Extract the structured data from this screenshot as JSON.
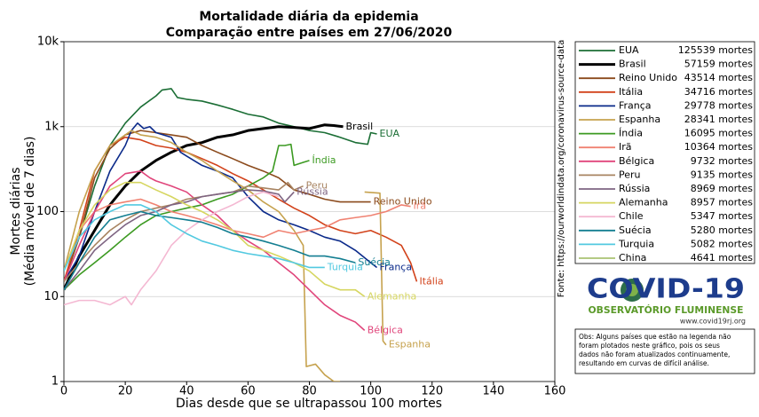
{
  "chart_data": {
    "type": "line",
    "title": "Mortalidade diária da epidemia",
    "subtitle": "Comparação entre países em 27/06/2020",
    "x_label": "Dias desde que se ultrapassou 100 mortes",
    "y_label": [
      "Mortes diárias",
      "(Média móvel de 7 dias)"
    ],
    "source": "Fonte: https://ourworldindata.org/coronavirus-source-data",
    "xlim": [
      0,
      160
    ],
    "xticks": [
      0,
      20,
      40,
      60,
      80,
      100,
      120,
      140,
      160
    ],
    "ylim": [
      1,
      10000
    ],
    "log_scale": true,
    "yticks": [
      1,
      10,
      100,
      {
        "value": 1000,
        "label": "1k"
      },
      {
        "value": 10000,
        "label": "10k"
      }
    ],
    "grid": true,
    "legend_position": "right",
    "series": [
      {
        "name": "EUA",
        "color": "#1b6e35",
        "total_label": "125539 mortes",
        "x": [
          0,
          5,
          10,
          15,
          20,
          25,
          30,
          32,
          35,
          37,
          40,
          45,
          50,
          55,
          60,
          65,
          70,
          75,
          80,
          85,
          90,
          95,
          99,
          100,
          102
        ],
        "values": [
          15,
          50,
          200,
          600,
          1100,
          1700,
          2300,
          2700,
          2800,
          2200,
          2100,
          2000,
          1800,
          1600,
          1400,
          1300,
          1100,
          1000,
          900,
          850,
          750,
          650,
          620,
          850,
          820
        ]
      },
      {
        "name": "Brasil",
        "color": "#000000",
        "linewidth": 3,
        "total_label": "57159 mortes",
        "x": [
          0,
          5,
          10,
          15,
          20,
          25,
          30,
          35,
          40,
          45,
          50,
          55,
          60,
          65,
          70,
          75,
          80,
          85,
          88,
          91
        ],
        "values": [
          12,
          30,
          60,
          120,
          200,
          300,
          400,
          500,
          600,
          650,
          750,
          800,
          900,
          950,
          1000,
          980,
          950,
          1050,
          1030,
          1000
        ]
      },
      {
        "name": "Reino Unido",
        "color": "#8b4a1c",
        "total_label": "43514 mortes",
        "x": [
          0,
          5,
          10,
          15,
          20,
          25,
          30,
          35,
          40,
          45,
          50,
          55,
          60,
          65,
          70,
          75,
          80,
          85,
          90,
          95,
          100
        ],
        "values": [
          15,
          50,
          250,
          550,
          800,
          900,
          850,
          800,
          750,
          600,
          500,
          420,
          350,
          300,
          250,
          180,
          160,
          140,
          130,
          130,
          130
        ]
      },
      {
        "name": "Itália",
        "color": "#d2421a",
        "total_label": "34716 mortes",
        "x": [
          0,
          5,
          10,
          15,
          20,
          25,
          30,
          35,
          40,
          45,
          50,
          55,
          60,
          65,
          70,
          75,
          80,
          85,
          90,
          95,
          100,
          105,
          110,
          113,
          115
        ],
        "values": [
          15,
          60,
          300,
          600,
          750,
          700,
          600,
          560,
          500,
          420,
          350,
          280,
          230,
          180,
          140,
          110,
          90,
          70,
          60,
          55,
          60,
          50,
          40,
          25,
          15
        ]
      },
      {
        "name": "França",
        "color": "#0b2a8a",
        "total_label": "29778 mortes",
        "x": [
          0,
          5,
          10,
          15,
          20,
          22,
          24,
          26,
          28,
          30,
          35,
          38,
          40,
          45,
          50,
          55,
          60,
          65,
          70,
          75,
          80,
          85,
          90,
          95,
          100,
          102
        ],
        "values": [
          15,
          30,
          100,
          300,
          600,
          900,
          1100,
          950,
          1000,
          850,
          750,
          500,
          450,
          350,
          300,
          250,
          150,
          100,
          80,
          70,
          60,
          50,
          45,
          35,
          25,
          22
        ]
      },
      {
        "name": "Espanha",
        "color": "#c6a24e",
        "total_label": "28341 mortes",
        "x": [
          0,
          5,
          10,
          15,
          20,
          22,
          25,
          30,
          35,
          40,
          45,
          50,
          55,
          60,
          65,
          70,
          75,
          78,
          79,
          82,
          85,
          88,
          90,
          95,
          98,
          103,
          104,
          105
        ],
        "values": [
          20,
          100,
          300,
          600,
          800,
          900,
          800,
          750,
          650,
          500,
          400,
          300,
          230,
          180,
          130,
          100,
          60,
          40,
          1.5,
          1.6,
          1.2,
          1.0,
          1,
          null,
          170,
          165,
          3,
          2.7
        ]
      },
      {
        "name": "Índia",
        "color": "#3c9a22",
        "total_label": "16095 mortes",
        "x": [
          0,
          5,
          10,
          15,
          20,
          25,
          30,
          35,
          40,
          45,
          50,
          55,
          60,
          65,
          68,
          70,
          72,
          74,
          75,
          78,
          80
        ],
        "values": [
          12,
          18,
          25,
          35,
          50,
          70,
          90,
          100,
          110,
          120,
          140,
          160,
          200,
          250,
          300,
          600,
          600,
          620,
          350,
          380,
          400
        ]
      },
      {
        "name": "Irã",
        "color": "#f08272",
        "total_label": "10364 mortes",
        "x": [
          0,
          5,
          10,
          15,
          20,
          25,
          30,
          35,
          40,
          45,
          50,
          55,
          60,
          65,
          70,
          75,
          80,
          85,
          90,
          95,
          100,
          105,
          110,
          113
        ],
        "values": [
          20,
          60,
          100,
          120,
          130,
          140,
          120,
          100,
          90,
          80,
          70,
          60,
          55,
          50,
          60,
          55,
          60,
          65,
          80,
          85,
          90,
          100,
          120,
          115
        ]
      },
      {
        "name": "Bélgica",
        "color": "#e0457b",
        "total_label": "9732 mortes",
        "x": [
          0,
          5,
          10,
          15,
          20,
          25,
          28,
          30,
          35,
          40,
          45,
          50,
          55,
          60,
          65,
          70,
          75,
          80,
          85,
          90,
          95,
          98
        ],
        "values": [
          15,
          40,
          100,
          200,
          280,
          300,
          250,
          230,
          200,
          170,
          120,
          90,
          60,
          45,
          35,
          25,
          18,
          12,
          8,
          6,
          5,
          4
        ]
      },
      {
        "name": "Peru",
        "color": "#a88462",
        "total_label": "9135 mortes",
        "x": [
          0,
          5,
          10,
          15,
          20,
          25,
          30,
          35,
          40,
          45,
          50,
          55,
          60,
          65,
          70,
          73,
          75,
          78
        ],
        "values": [
          15,
          25,
          40,
          60,
          80,
          100,
          110,
          120,
          140,
          150,
          160,
          170,
          200,
          190,
          180,
          220,
          180,
          200
        ]
      },
      {
        "name": "Rússia",
        "color": "#7e6482",
        "total_label": "8969 mortes",
        "x": [
          0,
          5,
          10,
          15,
          20,
          25,
          30,
          35,
          40,
          45,
          50,
          55,
          60,
          65,
          70,
          72,
          75
        ],
        "values": [
          12,
          20,
          35,
          50,
          70,
          90,
          100,
          120,
          130,
          150,
          160,
          170,
          180,
          175,
          160,
          130,
          170
        ]
      },
      {
        "name": "Alemanha",
        "color": "#d6d660",
        "total_label": "8957 mortes",
        "x": [
          0,
          5,
          10,
          15,
          20,
          25,
          30,
          35,
          40,
          45,
          50,
          55,
          60,
          65,
          70,
          75,
          80,
          85,
          90,
          95,
          98
        ],
        "values": [
          20,
          60,
          120,
          180,
          220,
          220,
          180,
          150,
          120,
          100,
          80,
          60,
          40,
          35,
          30,
          25,
          20,
          14,
          12,
          12,
          10
        ]
      },
      {
        "name": "Chile",
        "color": "#f4b8d2",
        "total_label": "5347 mortes",
        "end_label": false,
        "x": [
          0,
          5,
          10,
          15,
          20,
          22,
          25,
          30,
          35,
          40,
          45,
          50,
          55,
          60,
          65,
          70
        ],
        "values": [
          8,
          9,
          9,
          8,
          10,
          8,
          12,
          20,
          40,
          60,
          80,
          100,
          120,
          150,
          170,
          150
        ]
      },
      {
        "name": "Suécia",
        "color": "#137e91",
        "total_label": "5280 mortes",
        "x": [
          0,
          5,
          10,
          15,
          20,
          25,
          30,
          35,
          40,
          45,
          50,
          55,
          60,
          65,
          70,
          75,
          80,
          85,
          90,
          95
        ],
        "values": [
          12,
          25,
          50,
          80,
          90,
          100,
          90,
          85,
          80,
          75,
          65,
          55,
          50,
          45,
          40,
          35,
          30,
          30,
          28,
          25
        ]
      },
      {
        "name": "Turquia",
        "color": "#52c9e0",
        "total_label": "5082 mortes",
        "x": [
          0,
          5,
          10,
          15,
          20,
          25,
          30,
          35,
          40,
          45,
          50,
          55,
          60,
          65,
          70,
          75,
          80,
          85
        ],
        "values": [
          20,
          50,
          80,
          100,
          120,
          120,
          100,
          70,
          55,
          45,
          40,
          35,
          32,
          30,
          28,
          25,
          22,
          22
        ]
      },
      {
        "name": "China",
        "color": "#a9c273",
        "total_label": "4641 mortes",
        "end_label": false,
        "x": [],
        "values": []
      }
    ]
  },
  "logo": {
    "title": "COVID-19",
    "subtitle": "OBSERVATÓRIO FLUMINENSE",
    "url": "www.covid19rj.org"
  },
  "note": [
    "Obs: Alguns países que estão na legenda não",
    "foram plotados neste gráfico, pois os seus",
    "dados não foram atualizados continuamente,",
    "resultando em curvas de difícil análise."
  ]
}
